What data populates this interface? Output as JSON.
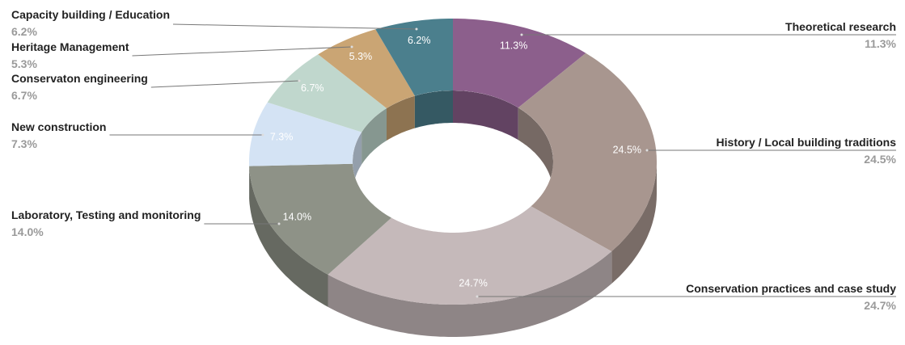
{
  "chart_data": {
    "type": "donut",
    "categories": [
      "Theoretical research",
      "History / Local building traditions",
      "Conservation practices and case study",
      "Laboratory, Testing and monitoring",
      "New construction",
      "Conservaton engineering",
      "Heritage Management",
      "Capacity building / Education"
    ],
    "values": [
      11.3,
      24.5,
      24.7,
      14.0,
      7.3,
      6.7,
      5.3,
      6.2
    ],
    "value_labels": [
      "11.3%",
      "24.5%",
      "24.7%",
      "14.0%",
      "7.3%",
      "6.7%",
      "5.3%",
      "6.2%"
    ],
    "colors": [
      "#8c5f8c",
      "#a8968f",
      "#c5b9ba",
      "#8e9287",
      "#d4e3f4",
      "#c0d7cd",
      "#caa574",
      "#4b7f8d"
    ]
  }
}
